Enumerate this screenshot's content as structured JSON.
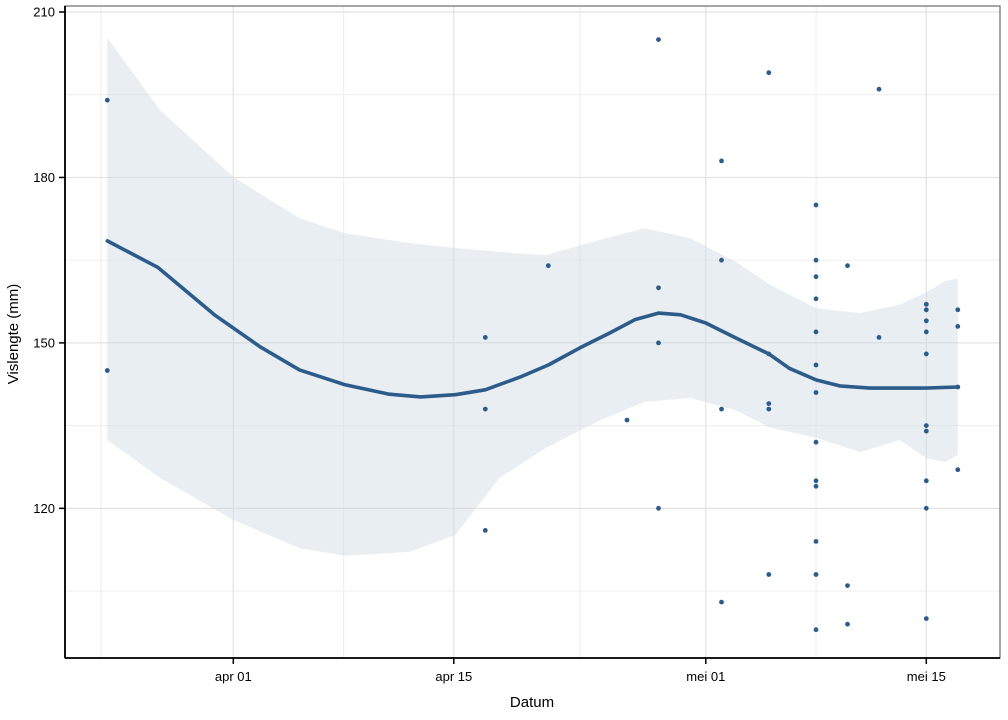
{
  "chart_data": {
    "type": "scatter",
    "title": "",
    "xlabel": "Datum",
    "ylabel": "Vislengte (mm)",
    "legend": "none",
    "grid": "on",
    "x_axis": {
      "unit": "days since apr 01",
      "range_d": [
        -10.7,
        48.7
      ],
      "major_ticks": [
        {
          "d": 0,
          "label": "apr 01"
        },
        {
          "d": 14,
          "label": "apr 15"
        },
        {
          "d": 30,
          "label": "mei 01"
        },
        {
          "d": 44,
          "label": "mei 15"
        }
      ],
      "minor_ticks_d": [
        -8.4,
        7,
        22,
        37
      ]
    },
    "y_axis": {
      "range": [
        93,
        211
      ],
      "major_ticks": [
        120,
        150,
        180,
        210
      ],
      "minor_ticks": [
        105,
        135,
        165,
        195
      ]
    },
    "points": [
      {
        "date": "mrt 24",
        "d": -8,
        "v": 194
      },
      {
        "date": "mrt 24",
        "d": -8,
        "v": 145
      },
      {
        "date": "apr 17",
        "d": 16,
        "v": 151
      },
      {
        "date": "apr 17",
        "d": 16,
        "v": 138
      },
      {
        "date": "apr 17",
        "d": 16,
        "v": 116
      },
      {
        "date": "apr 21",
        "d": 20,
        "v": 164
      },
      {
        "date": "apr 26",
        "d": 25,
        "v": 136
      },
      {
        "date": "apr 28",
        "d": 27,
        "v": 205
      },
      {
        "date": "apr 28",
        "d": 27,
        "v": 160
      },
      {
        "date": "apr 28",
        "d": 27,
        "v": 150
      },
      {
        "date": "apr 28",
        "d": 27,
        "v": 120
      },
      {
        "date": "mei 02",
        "d": 31,
        "v": 183
      },
      {
        "date": "mei 02",
        "d": 31,
        "v": 165
      },
      {
        "date": "mei 02",
        "d": 31,
        "v": 138
      },
      {
        "date": "mei 02",
        "d": 31,
        "v": 103
      },
      {
        "date": "mei 05",
        "d": 34,
        "v": 199
      },
      {
        "date": "mei 05",
        "d": 34,
        "v": 148
      },
      {
        "date": "mei 05",
        "d": 34,
        "v": 139
      },
      {
        "date": "mei 05",
        "d": 34,
        "v": 138
      },
      {
        "date": "mei 05",
        "d": 34,
        "v": 108
      },
      {
        "date": "mei 08",
        "d": 37,
        "v": 175
      },
      {
        "date": "mei 08",
        "d": 37,
        "v": 165
      },
      {
        "date": "mei 08",
        "d": 37,
        "v": 162
      },
      {
        "date": "mei 08",
        "d": 37,
        "v": 158
      },
      {
        "date": "mei 08",
        "d": 37,
        "v": 152
      },
      {
        "date": "mei 08",
        "d": 37,
        "v": 146
      },
      {
        "date": "mei 08",
        "d": 37,
        "v": 141
      },
      {
        "date": "mei 08",
        "d": 37,
        "v": 132
      },
      {
        "date": "mei 08",
        "d": 37,
        "v": 125
      },
      {
        "date": "mei 08",
        "d": 37,
        "v": 124
      },
      {
        "date": "mei 08",
        "d": 37,
        "v": 114
      },
      {
        "date": "mei 08",
        "d": 37,
        "v": 108
      },
      {
        "date": "mei 08",
        "d": 37,
        "v": 98
      },
      {
        "date": "mei 10",
        "d": 39,
        "v": 164
      },
      {
        "date": "mei 10",
        "d": 39,
        "v": 106
      },
      {
        "date": "mei 10",
        "d": 39,
        "v": 99
      },
      {
        "date": "mei 12",
        "d": 41,
        "v": 196
      },
      {
        "date": "mei 12",
        "d": 41,
        "v": 151
      },
      {
        "date": "mei 15",
        "d": 44,
        "v": 157
      },
      {
        "date": "mei 15",
        "d": 44,
        "v": 156
      },
      {
        "date": "mei 15",
        "d": 44,
        "v": 154
      },
      {
        "date": "mei 15",
        "d": 44,
        "v": 152
      },
      {
        "date": "mei 15",
        "d": 44,
        "v": 148
      },
      {
        "date": "mei 15",
        "d": 44,
        "v": 135
      },
      {
        "date": "mei 15",
        "d": 44,
        "v": 134
      },
      {
        "date": "mei 15",
        "d": 44,
        "v": 125
      },
      {
        "date": "mei 15",
        "d": 44,
        "v": 120
      },
      {
        "date": "mei 15",
        "d": 44,
        "v": 100
      },
      {
        "date": "mei 17",
        "d": 46,
        "v": 156
      },
      {
        "date": "mei 17",
        "d": 46,
        "v": 153
      },
      {
        "date": "mei 17",
        "d": 46,
        "v": 142
      },
      {
        "date": "mei 17",
        "d": 46,
        "v": 127
      }
    ],
    "smooth_line": [
      [
        -8,
        168.5
      ],
      [
        -4.8,
        163.7
      ],
      [
        -1.2,
        155.1
      ],
      [
        1.7,
        149.3
      ],
      [
        4.2,
        145.1
      ],
      [
        7.1,
        142.4
      ],
      [
        9.9,
        140.7
      ],
      [
        11.9,
        140.2
      ],
      [
        14.1,
        140.6
      ],
      [
        16.0,
        141.5
      ],
      [
        18.2,
        143.8
      ],
      [
        20.0,
        146.0
      ],
      [
        22.0,
        149.1
      ],
      [
        23.9,
        151.8
      ],
      [
        25.5,
        154.2
      ],
      [
        27.0,
        155.4
      ],
      [
        28.4,
        155.1
      ],
      [
        30.0,
        153.6
      ],
      [
        31.9,
        150.9
      ],
      [
        34.0,
        148.0
      ],
      [
        35.3,
        145.4
      ],
      [
        37.0,
        143.3
      ],
      [
        38.5,
        142.2
      ],
      [
        40.4,
        141.8
      ],
      [
        42.3,
        141.8
      ],
      [
        44.0,
        141.8
      ],
      [
        46.0,
        142.0
      ]
    ],
    "confidence_band": [
      [
        -8,
        132.4,
        205.3
      ],
      [
        -4.65,
        125.5,
        192.2
      ],
      [
        0,
        117.9,
        180.1
      ],
      [
        4.2,
        112.8,
        172.6
      ],
      [
        7.1,
        111.4,
        169.9
      ],
      [
        11.2,
        112.1,
        168.1
      ],
      [
        14.1,
        115.2,
        167.2
      ],
      [
        16.9,
        125.5,
        166.5
      ],
      [
        19.8,
        130.9,
        165.9
      ],
      [
        23.3,
        136.0,
        168.7
      ],
      [
        26.1,
        139.3,
        170.8
      ],
      [
        29.0,
        140.0,
        169.0
      ],
      [
        31.9,
        137.8,
        164.7
      ],
      [
        34.1,
        134.6,
        160.5
      ],
      [
        37.0,
        132.8,
        156.3
      ],
      [
        39.8,
        130.2,
        155.4
      ],
      [
        42.3,
        132.4,
        156.9
      ],
      [
        44.0,
        129.1,
        159.2
      ],
      [
        45.2,
        128.4,
        161.2
      ],
      [
        46.0,
        129.7,
        161.7
      ]
    ],
    "colors": {
      "point": "#2d5c8a",
      "line": "#2d5c8a",
      "band_fill": "#cdd9e3",
      "band_opacity": 0.45,
      "grid_major": "#e3e3e3",
      "grid_minor": "#f0f0f0",
      "axis": "#000000",
      "panel_border": "#7f7f7f",
      "text": "#000000"
    }
  }
}
